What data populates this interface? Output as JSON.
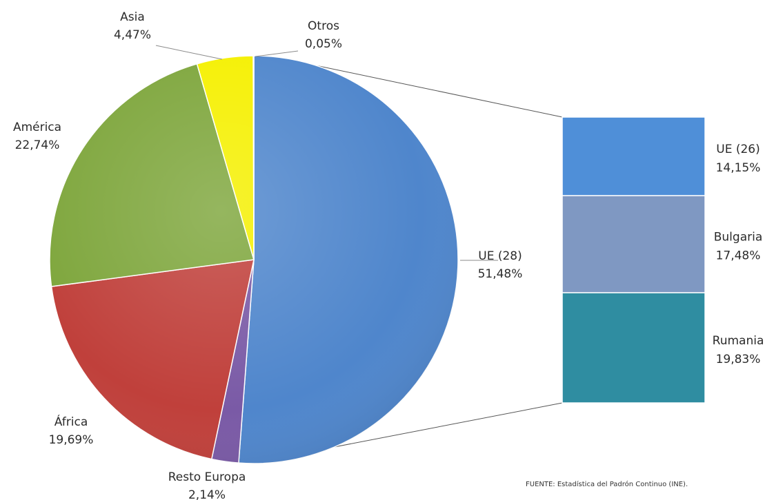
{
  "chart_data": {
    "type": "pie",
    "title": "",
    "slices": [
      {
        "name": "UE (28)",
        "value": 51.48,
        "label": "51,48%",
        "color": "#4f86cc"
      },
      {
        "name": "Resto Europa",
        "value": 2.14,
        "label": "2,14%",
        "color": "#7a5aa6"
      },
      {
        "name": "África",
        "value": 19.69,
        "label": "19,69%",
        "color": "#c0403b"
      },
      {
        "name": "América",
        "value": 22.74,
        "label": "22,74%",
        "color": "#7ea63c"
      },
      {
        "name": "Asia",
        "value": 4.47,
        "label": "4,47%",
        "color": "#f5f000"
      },
      {
        "name": "Otros",
        "value": 0.05,
        "label": "0,05%",
        "color": "#6aa2e0"
      }
    ],
    "breakdown": {
      "of": "UE (28)",
      "type": "stacked-bar",
      "segments": [
        {
          "name": "UE (26)",
          "value": 14.15,
          "label": "14,15%",
          "color": "#4f8fd8"
        },
        {
          "name": "Bulgaria",
          "value": 17.48,
          "label": "17,48%",
          "color": "#7f98c2"
        },
        {
          "name": "Rumania",
          "value": 19.83,
          "label": "19,83%",
          "color": "#2f8da1"
        }
      ]
    },
    "source": "FUENTE: Estadística del Padrón Continuo (INE)."
  }
}
